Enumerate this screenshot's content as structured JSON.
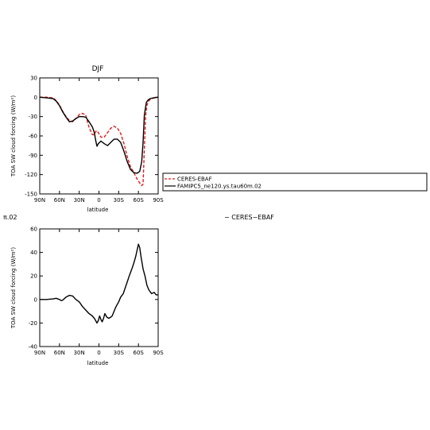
{
  "chart_data": [
    {
      "type": "line",
      "title": "DJF",
      "xlabel": "latitude",
      "ylabel": "TOA SW cloud forcing (W/m²)",
      "x_tick_labels": [
        "90N",
        "60N",
        "30N",
        "0",
        "30S",
        "60S",
        "90S"
      ],
      "x_ticks": [
        90,
        60,
        30,
        0,
        -30,
        -60,
        -90
      ],
      "xlim": [
        90,
        -90
      ],
      "ylim": [
        -150,
        30
      ],
      "y_ticks": [
        -150,
        -120,
        -90,
        -60,
        -30,
        0,
        30
      ],
      "grid": false,
      "legend_position": "right",
      "series": [
        {
          "name": "CERES-EBAF",
          "color": "#e41a1c",
          "dashed": true,
          "points": [
            [
              90,
              0
            ],
            [
              80,
              0
            ],
            [
              70,
              -1
            ],
            [
              65,
              -5
            ],
            [
              60,
              -12
            ],
            [
              55,
              -22
            ],
            [
              50,
              -30
            ],
            [
              45,
              -36
            ],
            [
              40,
              -38
            ],
            [
              35,
              -33
            ],
            [
              30,
              -27
            ],
            [
              25,
              -25
            ],
            [
              20,
              -28
            ],
            [
              15,
              -47
            ],
            [
              10,
              -58
            ],
            [
              7,
              -58
            ],
            [
              5,
              -53
            ],
            [
              3,
              -52
            ],
            [
              1,
              -55
            ],
            [
              -3,
              -62
            ],
            [
              -8,
              -62
            ],
            [
              -13,
              -55
            ],
            [
              -18,
              -48
            ],
            [
              -23,
              -45
            ],
            [
              -28,
              -48
            ],
            [
              -33,
              -56
            ],
            [
              -38,
              -72
            ],
            [
              -43,
              -92
            ],
            [
              -48,
              -108
            ],
            [
              -53,
              -117
            ],
            [
              -58,
              -127
            ],
            [
              -62,
              -133
            ],
            [
              -65,
              -137
            ],
            [
              -67,
              -135
            ],
            [
              -69,
              -80
            ],
            [
              -71,
              -28
            ],
            [
              -73,
              -12
            ],
            [
              -76,
              -5
            ],
            [
              -80,
              -2
            ],
            [
              -90,
              0
            ]
          ]
        },
        {
          "name": "FAMIPC5_ne120.ys.tau60m.02",
          "color": "#000000",
          "dashed": false,
          "points": [
            [
              90,
              0
            ],
            [
              80,
              -1
            ],
            [
              70,
              -2
            ],
            [
              65,
              -6
            ],
            [
              60,
              -13
            ],
            [
              55,
              -23
            ],
            [
              50,
              -31
            ],
            [
              45,
              -38
            ],
            [
              40,
              -37
            ],
            [
              35,
              -33
            ],
            [
              30,
              -30
            ],
            [
              25,
              -30
            ],
            [
              20,
              -31
            ],
            [
              15,
              -38
            ],
            [
              10,
              -46
            ],
            [
              7,
              -55
            ],
            [
              5,
              -67
            ],
            [
              3,
              -76
            ],
            [
              1,
              -72
            ],
            [
              -3,
              -68
            ],
            [
              -8,
              -72
            ],
            [
              -13,
              -75
            ],
            [
              -18,
              -70
            ],
            [
              -23,
              -65
            ],
            [
              -28,
              -65
            ],
            [
              -33,
              -70
            ],
            [
              -38,
              -84
            ],
            [
              -43,
              -100
            ],
            [
              -48,
              -112
            ],
            [
              -53,
              -117
            ],
            [
              -58,
              -118
            ],
            [
              -62,
              -115
            ],
            [
              -65,
              -100
            ],
            [
              -67,
              -70
            ],
            [
              -69,
              -28
            ],
            [
              -72,
              -8
            ],
            [
              -75,
              -4
            ],
            [
              -78,
              -2
            ],
            [
              -83,
              -1
            ],
            [
              -90,
              0
            ]
          ]
        }
      ]
    },
    {
      "type": "line",
      "title": "",
      "xlabel": "latitude",
      "ylabel": "TOA SW cloud forcing (W/m²)",
      "x_tick_labels": [
        "90N",
        "60N",
        "30N",
        "0",
        "30S",
        "60S",
        "90S"
      ],
      "x_ticks": [
        90,
        60,
        30,
        0,
        -30,
        -60,
        -90
      ],
      "xlim": [
        90,
        -90
      ],
      "ylim": [
        -40,
        60
      ],
      "y_ticks": [
        -40,
        -20,
        0,
        20,
        40,
        60
      ],
      "grid": false,
      "series": [
        {
          "color": "#000000",
          "dashed": false,
          "points": [
            [
              90,
              0
            ],
            [
              80,
              0
            ],
            [
              70,
              0.5
            ],
            [
              65,
              1
            ],
            [
              60,
              0
            ],
            [
              57,
              -1
            ],
            [
              55,
              -0.5
            ],
            [
              50,
              2
            ],
            [
              45,
              3.5
            ],
            [
              40,
              3
            ],
            [
              35,
              0
            ],
            [
              30,
              -2
            ],
            [
              25,
              -6
            ],
            [
              20,
              -9
            ],
            [
              15,
              -12
            ],
            [
              10,
              -14
            ],
            [
              7,
              -16
            ],
            [
              5,
              -18
            ],
            [
              3,
              -20
            ],
            [
              1,
              -18
            ],
            [
              -1,
              -14
            ],
            [
              -3,
              -17
            ],
            [
              -5,
              -19
            ],
            [
              -7,
              -16
            ],
            [
              -9,
              -12
            ],
            [
              -12,
              -15
            ],
            [
              -15,
              -16
            ],
            [
              -18,
              -15
            ],
            [
              -20,
              -14
            ],
            [
              -23,
              -10
            ],
            [
              -26,
              -6
            ],
            [
              -30,
              -2
            ],
            [
              -33,
              2
            ],
            [
              -37,
              5
            ],
            [
              -40,
              10
            ],
            [
              -43,
              15
            ],
            [
              -46,
              20
            ],
            [
              -50,
              26
            ],
            [
              -53,
              31
            ],
            [
              -56,
              37
            ],
            [
              -58,
              42
            ],
            [
              -60,
              47
            ],
            [
              -62,
              44
            ],
            [
              -64,
              36
            ],
            [
              -67,
              26
            ],
            [
              -70,
              20
            ],
            [
              -73,
              12
            ],
            [
              -76,
              8
            ],
            [
              -80,
              5
            ],
            [
              -84,
              6
            ],
            [
              -87,
              4
            ],
            [
              -90,
              4
            ]
          ]
        }
      ]
    }
  ],
  "fragments": {
    "left_label": "π.02",
    "center_label": "− CERES−EBAF"
  }
}
